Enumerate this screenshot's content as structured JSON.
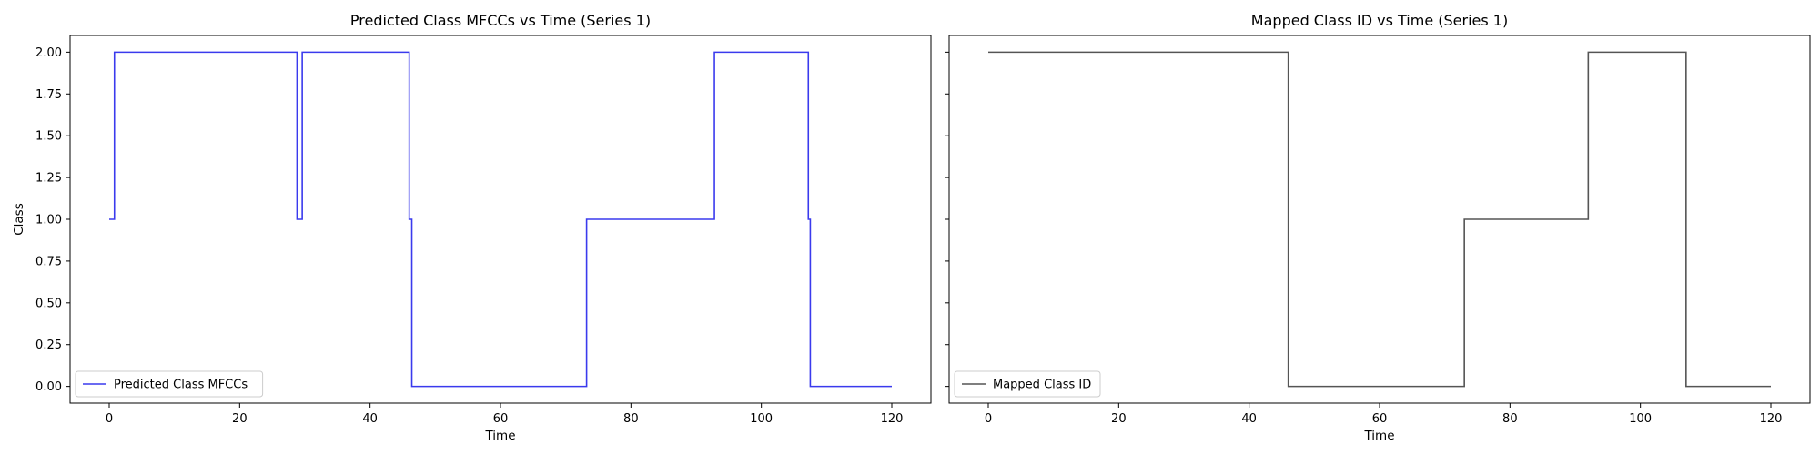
{
  "chart_data": [
    {
      "type": "line",
      "drawstyle": "steps-post",
      "title": "Predicted Class MFCCs vs Time (Series 1)",
      "xlabel": "Time",
      "ylabel": "Class",
      "xlim": [
        -6,
        126
      ],
      "ylim": [
        -0.1,
        2.1
      ],
      "xticks": [
        0,
        20,
        40,
        60,
        80,
        100,
        120
      ],
      "yticks": [
        0.0,
        0.25,
        0.5,
        0.75,
        1.0,
        1.25,
        1.5,
        1.75,
        2.0
      ],
      "ytick_labels": [
        "0.00",
        "0.25",
        "0.50",
        "0.75",
        "1.00",
        "1.25",
        "1.50",
        "1.75",
        "2.00"
      ],
      "legend_position": "lower left",
      "grid": false,
      "series": [
        {
          "name": "Predicted Class MFCCs",
          "color": "#3a3aed",
          "x": [
            0,
            0.8,
            28.8,
            29.6,
            46.0,
            46.4,
            73.2,
            92.8,
            107.2,
            107.5,
            120
          ],
          "y": [
            1,
            2,
            1,
            2,
            1,
            0,
            1,
            2,
            1,
            0,
            0
          ]
        }
      ]
    },
    {
      "type": "line",
      "drawstyle": "steps-post",
      "title": "Mapped Class ID vs Time (Series 1)",
      "xlabel": "Time",
      "ylabel": "",
      "xlim": [
        -6,
        126
      ],
      "ylim": [
        -0.1,
        2.1
      ],
      "xticks": [
        0,
        20,
        40,
        60,
        80,
        100,
        120
      ],
      "yticks": [
        0.0,
        0.25,
        0.5,
        0.75,
        1.0,
        1.25,
        1.5,
        1.75,
        2.0
      ],
      "ytick_labels": [],
      "legend_position": "lower left",
      "grid": false,
      "series": [
        {
          "name": "Mapped Class ID",
          "color": "#555555",
          "x": [
            0,
            46.0,
            73.0,
            92.0,
            107.0,
            120
          ],
          "y": [
            2,
            0,
            1,
            2,
            0,
            0
          ]
        }
      ]
    }
  ]
}
